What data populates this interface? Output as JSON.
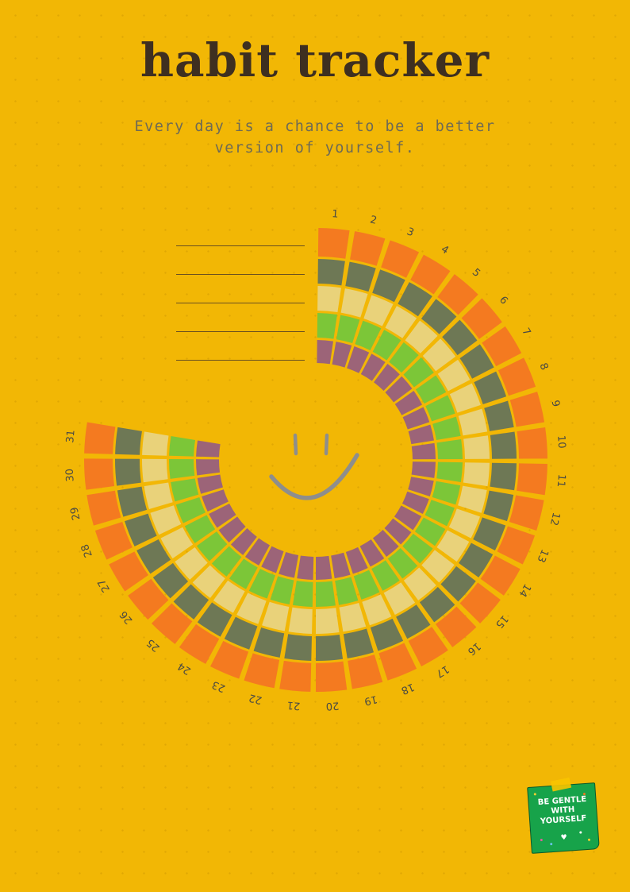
{
  "header": {
    "title": "habit tracker",
    "subtitle_line1": "Every day is a chance to be a better",
    "subtitle_line2": "version of yourself."
  },
  "tracker": {
    "days": [
      "1",
      "2",
      "3",
      "4",
      "5",
      "6",
      "7",
      "8",
      "9",
      "10",
      "11",
      "12",
      "13",
      "14",
      "15",
      "16",
      "17",
      "18",
      "19",
      "20",
      "21",
      "22",
      "23",
      "24",
      "25",
      "26",
      "27",
      "28",
      "29",
      "30",
      "31"
    ],
    "ring_colors": [
      "#F47A20",
      "#6E7855",
      "#E9D27A",
      "#7CC638",
      "#9C6478"
    ],
    "habit_name_lines": 5,
    "center_icon": "smiley-face-icon"
  },
  "sticker": {
    "line1": "BE GENTLE",
    "line2": "WITH",
    "line3": "YOURSELF",
    "note_color": "#17A34A",
    "heart_icon": "heart-icon"
  }
}
